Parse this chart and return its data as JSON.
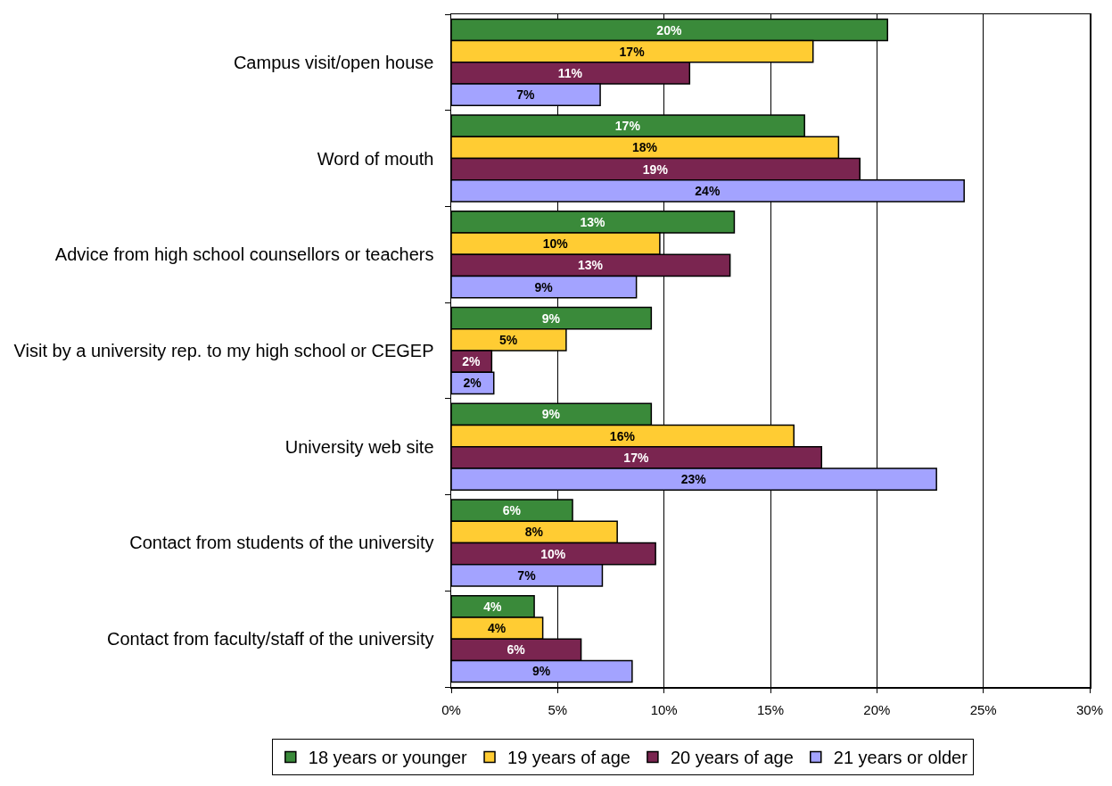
{
  "chart_data": {
    "type": "bar",
    "orientation": "horizontal",
    "categories": [
      "Campus visit/open house",
      "Word of mouth",
      "Advice from high school counsellors or teachers",
      "Visit by a university rep. to my high school or CEGEP",
      "University web site",
      "Contact from students of the university",
      "Contact from faculty/staff of the university"
    ],
    "series": [
      {
        "name": "18 years or younger",
        "color": "#3a8a3a",
        "values": [
          20.5,
          16.6,
          13.3,
          9.4,
          9.4,
          5.7,
          3.9
        ],
        "value_labels": [
          "20%",
          "17%",
          "13%",
          "9%",
          "9%",
          "6%",
          "4%"
        ]
      },
      {
        "name": "19 years of age",
        "color": "#ffcc33",
        "values": [
          17.0,
          18.2,
          9.8,
          5.4,
          16.1,
          7.8,
          4.3
        ],
        "value_labels": [
          "17%",
          "18%",
          "10%",
          "5%",
          "16%",
          "8%",
          "4%"
        ]
      },
      {
        "name": "20 years of age",
        "color": "#7a2550",
        "values": [
          11.2,
          19.2,
          13.1,
          1.9,
          17.4,
          9.6,
          6.1
        ],
        "value_labels": [
          "11%",
          "19%",
          "13%",
          "2%",
          "17%",
          "10%",
          "6%"
        ]
      },
      {
        "name": "21 years or older",
        "color": "#a3a3ff",
        "values": [
          7.0,
          24.1,
          8.7,
          2.0,
          22.8,
          7.1,
          8.5
        ],
        "value_labels": [
          "7%",
          "24%",
          "9%",
          "2%",
          "23%",
          "7%",
          "9%"
        ]
      }
    ],
    "xlim": [
      0,
      30
    ],
    "xticks": [
      {
        "value": 0,
        "label": "0%"
      },
      {
        "value": 5,
        "label": "5%"
      },
      {
        "value": 10,
        "label": "10%"
      },
      {
        "value": 15,
        "label": "15%"
      },
      {
        "value": 20,
        "label": "20%"
      },
      {
        "value": 25,
        "label": "25%"
      },
      {
        "value": 30,
        "label": "30%"
      }
    ],
    "grid": "x",
    "legend": "bottom"
  }
}
